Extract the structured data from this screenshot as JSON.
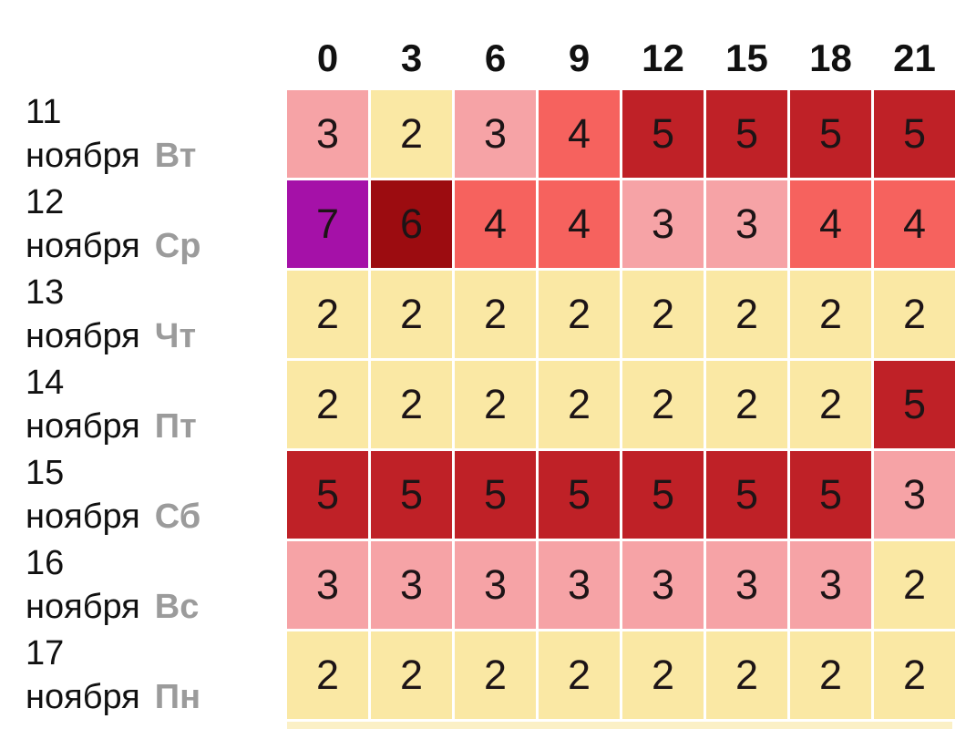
{
  "chart_data": {
    "type": "heatmap",
    "title": "",
    "xlabel": "",
    "ylabel": "",
    "columns": [
      "0",
      "3",
      "6",
      "9",
      "12",
      "15",
      "18",
      "21"
    ],
    "rows": [
      {
        "date": "11",
        "month": "ноября",
        "weekday": "Вт",
        "values": [
          3,
          2,
          3,
          4,
          5,
          5,
          5,
          5
        ]
      },
      {
        "date": "12",
        "month": "ноября",
        "weekday": "Ср",
        "values": [
          7,
          6,
          4,
          4,
          3,
          3,
          4,
          4
        ]
      },
      {
        "date": "13",
        "month": "ноября",
        "weekday": "Чт",
        "values": [
          2,
          2,
          2,
          2,
          2,
          2,
          2,
          2
        ]
      },
      {
        "date": "14",
        "month": "ноября",
        "weekday": "Пт",
        "values": [
          2,
          2,
          2,
          2,
          2,
          2,
          2,
          5
        ]
      },
      {
        "date": "15",
        "month": "ноября",
        "weekday": "Сб",
        "values": [
          5,
          5,
          5,
          5,
          5,
          5,
          5,
          3
        ]
      },
      {
        "date": "16",
        "month": "ноября",
        "weekday": "Вс",
        "values": [
          3,
          3,
          3,
          3,
          3,
          3,
          3,
          2
        ]
      },
      {
        "date": "17",
        "month": "ноября",
        "weekday": "Пн",
        "values": [
          2,
          2,
          2,
          2,
          2,
          2,
          2,
          2
        ]
      }
    ],
    "value_colors": {
      "2": "#FAE8A4",
      "3": "#F6A3A6",
      "4": "#F6625E",
      "5": "#BF2127",
      "6": "#9C0C10",
      "7": "#A511A8"
    },
    "cell_text_color": "#1d1416",
    "weekday_text_color": "#9B9B9B",
    "grid_gap_color": "#FFFFFF",
    "legend_position": "none",
    "grid_lines": "white-gaps",
    "cutoff_next_row": {
      "visible": true,
      "color": "#FBF0C6"
    }
  }
}
